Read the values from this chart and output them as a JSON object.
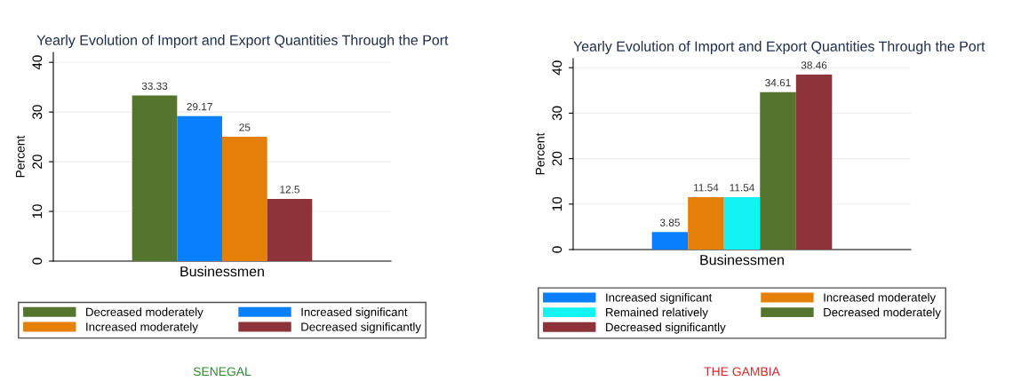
{
  "chart_data": [
    {
      "type": "bar",
      "title": "Yearly Evolution of Import and Export Quantities Through the Port",
      "xlabel": "Businessmen",
      "ylabel": "Percent",
      "categories": [
        null
      ],
      "ylim": [
        0,
        42
      ],
      "yticks": [
        0,
        10,
        20,
        30,
        40
      ],
      "grid": "y",
      "legend": "bottom",
      "tick_labels": "y",
      "data_labels": true,
      "annotations": [
        "SENEGAL"
      ],
      "series": [
        {
          "name": "Decreased moderately",
          "color": "#55752f",
          "values": [
            33.33
          ]
        },
        {
          "name": "Increased significant",
          "color": "#0a7ffb",
          "values": [
            29.17
          ]
        },
        {
          "name": "Increased moderately",
          "color": "#e4800a",
          "values": [
            25
          ]
        },
        {
          "name": "Decreased significantly",
          "color": "#8d3339",
          "values": [
            12.5
          ]
        }
      ]
    },
    {
      "type": "bar",
      "title": "Yearly Evolution of Import and Export Quantities Through the Port",
      "xlabel": "Businessmen",
      "ylabel": "Percent",
      "categories": [
        null
      ],
      "ylim": [
        0,
        42
      ],
      "yticks": [
        0,
        10,
        20,
        30,
        40
      ],
      "grid": "y",
      "legend": "bottom",
      "tick_labels": "y",
      "data_labels": true,
      "annotations": [
        "THE GAMBIA"
      ],
      "series": [
        {
          "name": "Increased significant",
          "color": "#0a7ffb",
          "values": [
            3.85
          ]
        },
        {
          "name": "Increased moderately",
          "color": "#e4800a",
          "values": [
            11.54
          ]
        },
        {
          "name": "Remained relatively",
          "color": "#12f4f4",
          "values": [
            11.54
          ]
        },
        {
          "name": "Decreased moderately",
          "color": "#55752f",
          "values": [
            34.61
          ]
        },
        {
          "name": "Decreased significantly",
          "color": "#8d3339",
          "values": [
            38.46
          ]
        }
      ]
    }
  ]
}
